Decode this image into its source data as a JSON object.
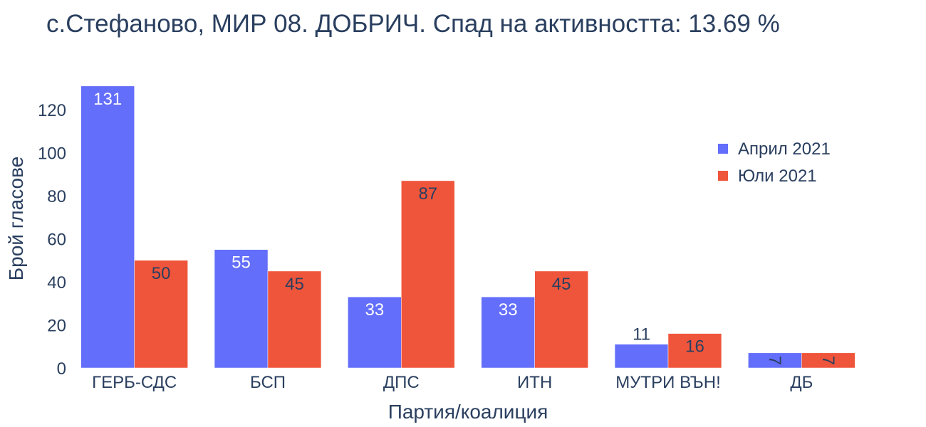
{
  "chart_data": {
    "type": "bar",
    "title": "с.Стефаново, МИР 08. ДОБРИЧ. Спад на активността: 13.69 %",
    "xlabel": "Партия/коалиция",
    "ylabel": "Брой гласове",
    "categories": [
      "ГЕРБ-СДС",
      "БСП",
      "ДПС",
      "ИТН",
      "МУТРИ ВЪН!",
      "ДБ"
    ],
    "series": [
      {
        "name": "Април 2021",
        "color": "#636efa",
        "values": [
          131,
          55,
          33,
          33,
          11,
          7
        ]
      },
      {
        "name": "Юли 2021",
        "color": "#ef553b",
        "values": [
          50,
          45,
          87,
          45,
          16,
          7
        ]
      }
    ],
    "ylim": [
      0,
      137.9
    ],
    "yticks": [
      0,
      20,
      40,
      60,
      80,
      100,
      120
    ],
    "grid": false,
    "legend": "top-right"
  }
}
